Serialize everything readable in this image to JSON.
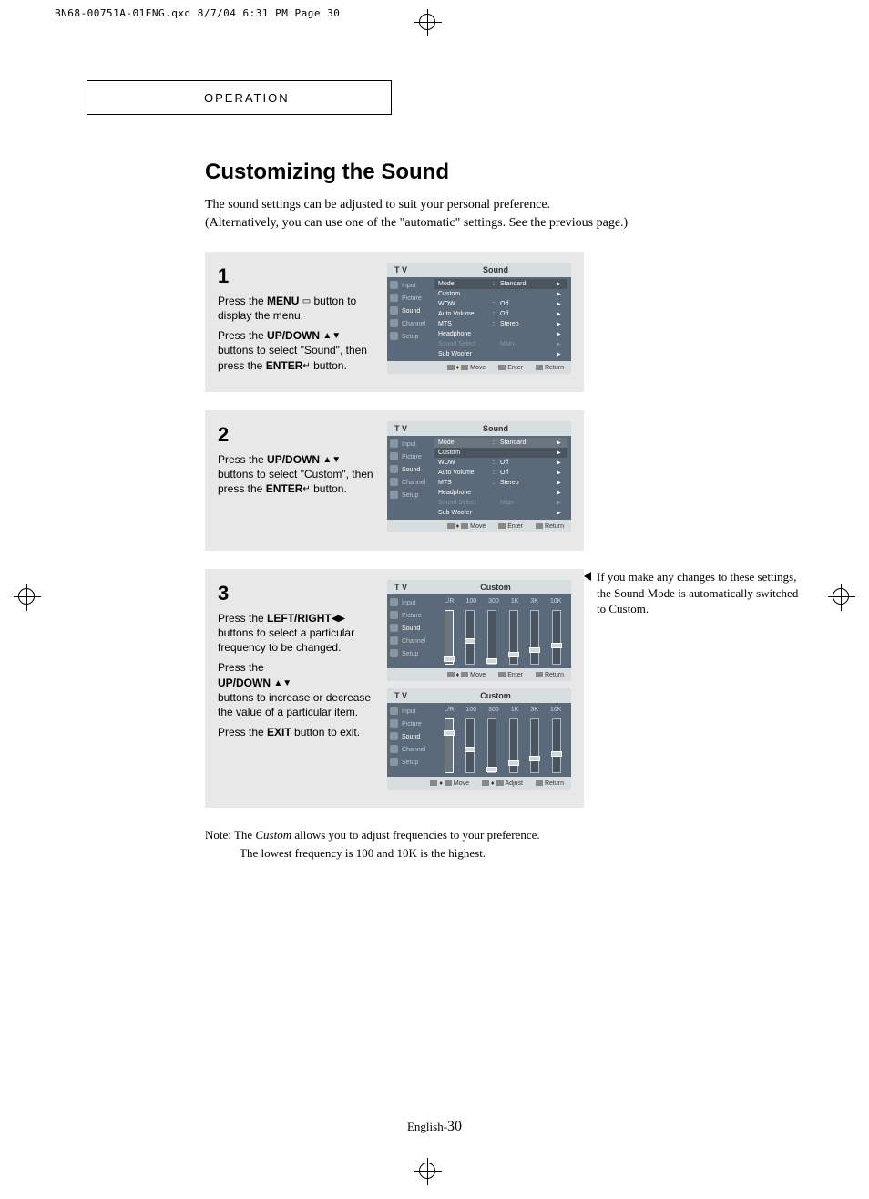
{
  "page_header": "BN68-00751A-01ENG.qxd  8/7/04 6:31 PM  Page 30",
  "section_label": "OPERATION",
  "main_title": "Customizing the Sound",
  "intro_line1": "The sound settings can be adjusted to suit your personal preference.",
  "intro_line2": "(Alternatively, you can use one of the \"automatic\" settings. See the previous page.)",
  "step1": {
    "num": "1",
    "p1a": "Press the ",
    "p1b": "MENU",
    "p1c": " button to display the menu.",
    "p2a": "Press the ",
    "p2b": "UP/DOWN",
    "p2c": " buttons to select \"Sound\", then press the ",
    "p2d": "ENTER",
    "p2e": " button."
  },
  "step2": {
    "num": "2",
    "p1a": "Press the ",
    "p1b": "UP/DOWN",
    "p1c": " buttons to select \"Custom\", then press the ",
    "p1d": "ENTER",
    "p1e": " button."
  },
  "step3": {
    "num": "3",
    "p1a": "Press the ",
    "p1b": "LEFT/RIGHT",
    "p1c": " buttons to select a particular frequency to be changed.",
    "p2a": "Press the ",
    "p2b": "UP/DOWN",
    "p2c": " buttons to increase or decrease the value of a particular item.",
    "p3a": "Press the ",
    "p3b": "EXIT",
    "p3c": " button to exit."
  },
  "side_note": "If you make any changes to these settings, the Sound Mode is automatically switched to Custom.",
  "menu": {
    "tv": "T V",
    "sound_title": "Sound",
    "custom_title": "Custom",
    "sidebar": [
      "Input",
      "Picture",
      "Sound",
      "Channel",
      "Setup"
    ],
    "rows": [
      {
        "label": "Mode",
        "val": "Standard"
      },
      {
        "label": "Custom",
        "val": ""
      },
      {
        "label": "WOW",
        "val": "Off"
      },
      {
        "label": "Auto Volume",
        "val": "Off"
      },
      {
        "label": "MTS",
        "val": "Stereo"
      },
      {
        "label": "Headphone",
        "val": ""
      },
      {
        "label": "Sound Select",
        "val": "Main"
      },
      {
        "label": "Sub Woofer",
        "val": ""
      }
    ],
    "footer_move": "Move",
    "footer_enter": "Enter",
    "footer_return": "Return",
    "footer_adjust": "Adjust",
    "eq_labels": [
      "L/R",
      "100",
      "300",
      "1K",
      "3K",
      "10K"
    ],
    "eq_positions_a": [
      50,
      30,
      52,
      45,
      40,
      35
    ],
    "eq_positions_b": [
      12,
      30,
      52,
      45,
      40,
      35
    ]
  },
  "note_label": "Note:",
  "note_line1": " The Custom allows you to adjust frequencies to your preference.",
  "note_line2": "The lowest frequency is 100 and 10K is the highest.",
  "page_footer_lang": "English-",
  "page_footer_num": "30",
  "icons": {
    "menu": "▭",
    "updown": "▲▼",
    "enter": "↵",
    "leftright": "◀▶"
  },
  "colors": {
    "step_bg": "#e8e8e8",
    "panel_bg": "#5a6a7a",
    "panel_header_bg": "#d8dde0"
  }
}
